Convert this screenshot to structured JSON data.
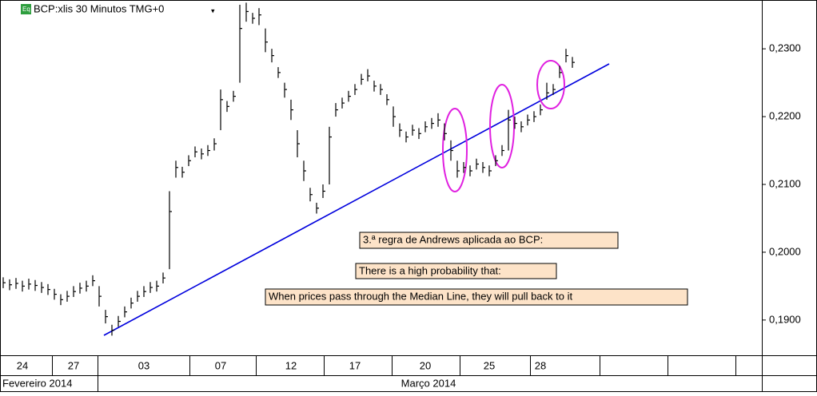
{
  "chart_data": {
    "type": "ohlc",
    "title": "BCP:xlis 30 Minutos TMG+0",
    "color": "#000000",
    "categories": [
      null,
      null,
      null,
      "24",
      null,
      null,
      null,
      null,
      null,
      null,
      null,
      "27",
      null,
      null,
      null,
      null,
      null,
      null,
      null,
      null,
      null,
      null,
      "03",
      null,
      null,
      null,
      null,
      null,
      null,
      null,
      null,
      null,
      null,
      null,
      "07",
      null,
      null,
      null,
      null,
      null,
      null,
      null,
      null,
      null,
      null,
      "12",
      null,
      null,
      null,
      null,
      null,
      null,
      null,
      null,
      null,
      "17",
      null,
      null,
      null,
      null,
      null,
      null,
      null,
      null,
      null,
      null,
      "20",
      null,
      null,
      null,
      null,
      null,
      null,
      null,
      null,
      null,
      "25",
      null,
      null,
      null,
      null,
      null,
      null,
      null,
      "28",
      null,
      null,
      null,
      null,
      null
    ],
    "periods": [
      "Fevereiro 2014",
      "Março 2014"
    ],
    "high": [
      0.1963,
      0.196,
      0.1962,
      0.1958,
      0.1961,
      0.1959,
      0.1956,
      0.1953,
      0.1946,
      0.1938,
      0.1943,
      0.195,
      0.1955,
      0.1958,
      0.1966,
      0.195,
      0.1915,
      0.1893,
      0.1906,
      0.192,
      0.1933,
      0.1943,
      0.195,
      0.1956,
      0.1958,
      0.197,
      0.209,
      0.2135,
      0.2126,
      0.2143,
      0.2156,
      0.2153,
      0.2158,
      0.2168,
      0.224,
      0.2223,
      0.2238,
      0.2365,
      0.2368,
      0.2353,
      0.236,
      0.233,
      0.23,
      0.2273,
      0.225,
      0.2225,
      0.218,
      0.2135,
      0.2095,
      0.2073,
      0.21,
      0.2185,
      0.222,
      0.2228,
      0.2238,
      0.2248,
      0.2263,
      0.227,
      0.2253,
      0.2248,
      0.2233,
      0.2215,
      0.219,
      0.2178,
      0.2188,
      0.2183,
      0.2193,
      0.2198,
      0.2205,
      0.219,
      0.2165,
      0.2135,
      0.2133,
      0.2128,
      0.2138,
      0.2133,
      0.2128,
      0.2143,
      0.2158,
      0.221,
      0.22,
      0.2193,
      0.2203,
      0.2208,
      0.2218,
      0.225,
      0.2248,
      0.2275,
      0.23,
      0.2288
    ],
    "low": [
      0.1947,
      0.1944,
      0.1946,
      0.1942,
      0.1945,
      0.1943,
      0.194,
      0.1937,
      0.193,
      0.1922,
      0.1927,
      0.1934,
      0.1939,
      0.1942,
      0.195,
      0.192,
      0.1895,
      0.1877,
      0.189,
      0.1904,
      0.1917,
      0.1927,
      0.1934,
      0.194,
      0.1942,
      0.1954,
      0.1975,
      0.211,
      0.211,
      0.2127,
      0.214,
      0.2137,
      0.2142,
      0.215,
      0.218,
      0.2207,
      0.2222,
      0.225,
      0.234,
      0.2337,
      0.2335,
      0.2295,
      0.228,
      0.2257,
      0.2228,
      0.2195,
      0.214,
      0.2105,
      0.2075,
      0.2057,
      0.208,
      0.21,
      0.22,
      0.2212,
      0.2222,
      0.2232,
      0.2247,
      0.2252,
      0.2237,
      0.2232,
      0.2217,
      0.2185,
      0.217,
      0.2162,
      0.2172,
      0.2167,
      0.2177,
      0.2182,
      0.2185,
      0.2165,
      0.2135,
      0.211,
      0.2117,
      0.2112,
      0.2122,
      0.2117,
      0.2112,
      0.2127,
      0.2142,
      0.215,
      0.2182,
      0.2177,
      0.2187,
      0.2192,
      0.2202,
      0.2225,
      0.2232,
      0.2257,
      0.228,
      0.2272
    ],
    "close": [
      0.1955,
      0.1952,
      0.1954,
      0.195,
      0.1953,
      0.1951,
      0.1948,
      0.1945,
      0.1938,
      0.193,
      0.1935,
      0.1942,
      0.1947,
      0.195,
      0.1958,
      0.1935,
      0.1905,
      0.1885,
      0.1898,
      0.1912,
      0.1925,
      0.1935,
      0.1942,
      0.1948,
      0.195,
      0.1962,
      0.206,
      0.2125,
      0.2118,
      0.2135,
      0.2148,
      0.2145,
      0.215,
      0.216,
      0.2225,
      0.2215,
      0.223,
      0.233,
      0.2355,
      0.2345,
      0.235,
      0.231,
      0.229,
      0.2265,
      0.224,
      0.221,
      0.216,
      0.212,
      0.2085,
      0.2065,
      0.209,
      0.217,
      0.221,
      0.222,
      0.223,
      0.224,
      0.2255,
      0.226,
      0.2245,
      0.224,
      0.2225,
      0.22,
      0.218,
      0.217,
      0.218,
      0.2175,
      0.2185,
      0.219,
      0.2195,
      0.2175,
      0.215,
      0.212,
      0.2125,
      0.212,
      0.213,
      0.2125,
      0.212,
      0.2135,
      0.215,
      0.2195,
      0.219,
      0.2185,
      0.2195,
      0.22,
      0.221,
      0.2235,
      0.224,
      0.2265,
      0.229,
      0.228
    ],
    "ylim": [
      0.1848,
      0.2372
    ],
    "yticks": [
      {
        "value": 0.19,
        "label": "0,1900"
      },
      {
        "value": 0.2,
        "label": "0,2000"
      },
      {
        "value": 0.21,
        "label": "0,2100"
      },
      {
        "value": 0.22,
        "label": "0,2200"
      },
      {
        "value": 0.23,
        "label": "0,2300"
      }
    ],
    "annotations": [
      "3.ª regra de Andrews aplicada ao BCP:",
      "There is a high probability that:",
      "When prices pass through the Median Line, they will pull back to it"
    ]
  }
}
